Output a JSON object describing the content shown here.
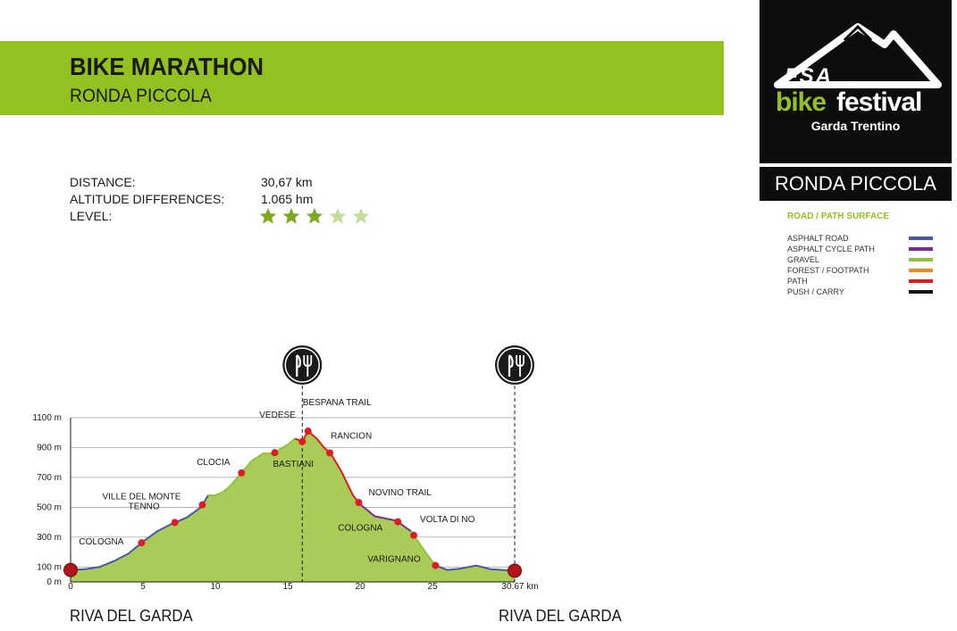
{
  "header": {
    "title": "BIKE MARATHON",
    "subtitle": "RONDA PICCOLA"
  },
  "stats": {
    "distance_label": "DISTANCE:",
    "distance_value": "30,67 km",
    "altitude_label": "ALTITUDE DIFFERENCES:",
    "altitude_value": "1.065 hm",
    "level_label": "LEVEL:",
    "level_value": 3,
    "level_max": 5
  },
  "logo": {
    "brand": "FSA",
    "bike": "bike",
    "festival": "festival",
    "sub": "Garda Trentino"
  },
  "route_name": "RONDA PICCOLA",
  "legend": {
    "title": "ROAD / PATH SURFACE",
    "items": [
      {
        "label": "ASPHALT ROAD",
        "color": "#4a56a6"
      },
      {
        "label": "ASPHALT CYCLE PATH",
        "color": "#7b2d8e"
      },
      {
        "label": "GRAVEL",
        "color": "#8cc43b"
      },
      {
        "label": "FOREST / FOOTPATH",
        "color": "#f08a1c"
      },
      {
        "label": "PATH",
        "color": "#e21b1b"
      },
      {
        "label": "PUSH / CARRY",
        "color": "#111111"
      }
    ]
  },
  "places": {
    "start": "RIVA DEL GARDA",
    "end": "RIVA DEL GARDA"
  },
  "colors": {
    "accent": "#93c120",
    "fill": "#a9cc59",
    "marker": "#e01b24"
  },
  "chart_data": {
    "type": "area",
    "xlabel": "km",
    "ylabel": "m",
    "xlim": [
      0,
      30.67
    ],
    "ylim": [
      0,
      1100
    ],
    "x_ticks": [
      "0",
      "5",
      "10",
      "15",
      "20",
      "25",
      "30.67 km"
    ],
    "x_tick_values": [
      0,
      5,
      10,
      15,
      20,
      25,
      30.67
    ],
    "y_ticks": [
      "0 m",
      "100 m",
      "300 m",
      "500 m",
      "700 m",
      "900 m",
      "1100 m"
    ],
    "y_tick_values": [
      0,
      100,
      300,
      500,
      700,
      900,
      1100
    ],
    "profile": [
      [
        0,
        80
      ],
      [
        1,
        85
      ],
      [
        2,
        100
      ],
      [
        3,
        140
      ],
      [
        4,
        190
      ],
      [
        5,
        270
      ],
      [
        6,
        340
      ],
      [
        7,
        390
      ],
      [
        8,
        430
      ],
      [
        9,
        500
      ],
      [
        9.5,
        580
      ],
      [
        10,
        580
      ],
      [
        10.5,
        600
      ],
      [
        11,
        640
      ],
      [
        11.8,
        730
      ],
      [
        12.5,
        810
      ],
      [
        13.3,
        860
      ],
      [
        14,
        860
      ],
      [
        15,
        920
      ],
      [
        15.5,
        960
      ],
      [
        16,
        940
      ],
      [
        16.4,
        1010
      ],
      [
        17,
        960
      ],
      [
        17.5,
        900
      ],
      [
        18,
        855
      ],
      [
        18.7,
        740
      ],
      [
        19.5,
        580
      ],
      [
        20,
        520
      ],
      [
        21,
        440
      ],
      [
        22.5,
        410
      ],
      [
        23.5,
        340
      ],
      [
        24.5,
        200
      ],
      [
        25.2,
        110
      ],
      [
        26,
        80
      ],
      [
        27,
        90
      ],
      [
        28,
        110
      ],
      [
        29,
        85
      ],
      [
        30.67,
        75
      ]
    ],
    "segments": [
      {
        "from": 0,
        "to": 9.5,
        "surface": "ASPHALT ROAD"
      },
      {
        "from": 9.5,
        "to": 15.5,
        "surface": "GRAVEL"
      },
      {
        "from": 15.5,
        "to": 20,
        "surface": "PATH"
      },
      {
        "from": 20,
        "to": 23.5,
        "surface": "ASPHALT CYCLE PATH"
      },
      {
        "from": 23.5,
        "to": 25.2,
        "surface": "GRAVEL"
      },
      {
        "from": 25.2,
        "to": 30.67,
        "surface": "ASPHALT ROAD"
      }
    ],
    "waypoints": [
      {
        "name": "COLOGNA",
        "x": 4.9,
        "side": "below"
      },
      {
        "name": "TENNO",
        "x": 7.2,
        "side": "above"
      },
      {
        "name": "VILLE DEL MONTE",
        "x": 9.1,
        "side": "above"
      },
      {
        "name": "CLOCIA",
        "x": 11.8,
        "side": "above"
      },
      {
        "name": "BASTIANI",
        "x": 14.1,
        "side": "below"
      },
      {
        "name": "VEDESE",
        "x": 16.0,
        "side": "above"
      },
      {
        "name": "BESPANA TRAIL",
        "x": 16.4,
        "side": "above"
      },
      {
        "name": "RANCION",
        "x": 17.9,
        "side": "above"
      },
      {
        "name": "NOVINO TRAIL",
        "x": 19.9,
        "side": "above"
      },
      {
        "name": "COLOGNA",
        "x": 22.6,
        "side": "below"
      },
      {
        "name": "VOLTA DI NO",
        "x": 23.7,
        "side": "above"
      },
      {
        "name": "VARIGNANO",
        "x": 25.2,
        "side": "below"
      }
    ],
    "endpoints": [
      0,
      30.67
    ],
    "refreshment_points": [
      16.0,
      30.67
    ]
  }
}
